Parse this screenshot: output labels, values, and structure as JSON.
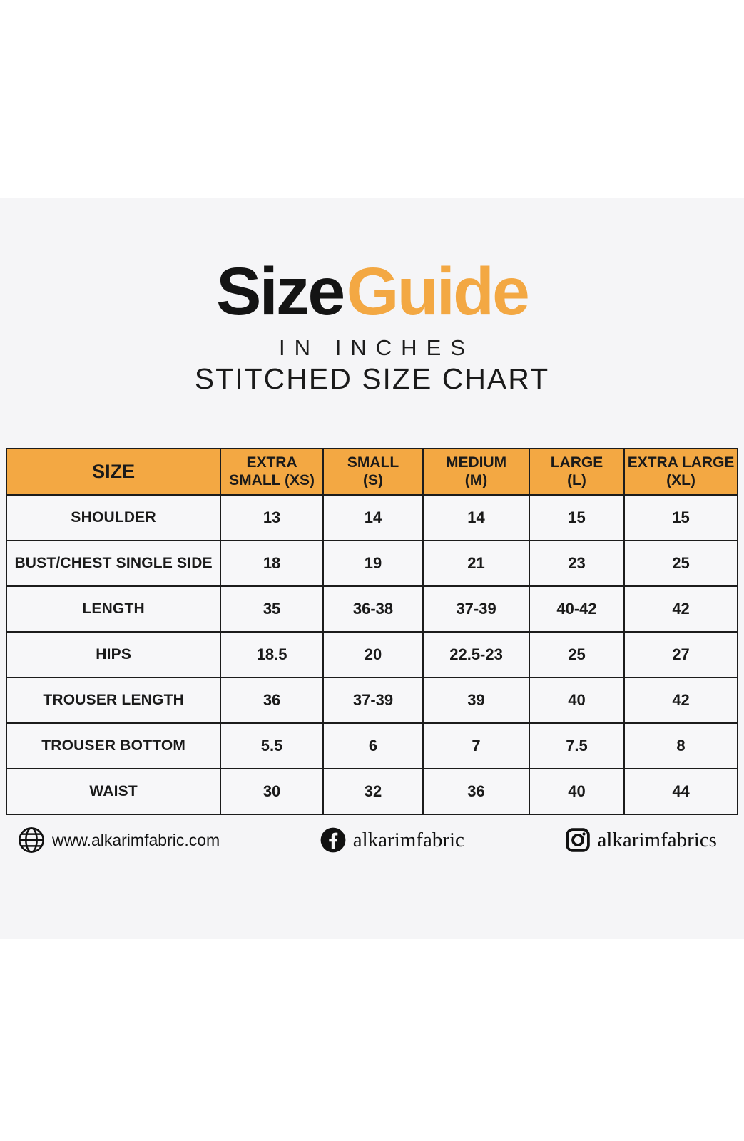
{
  "colors": {
    "accent_orange": "#f3a843",
    "content_background": "#f5f5f7",
    "cell_background": "#f7f7f9",
    "table_border": "#1c1c1c",
    "text_black": "#141414"
  },
  "header": {
    "title_word1": "Size",
    "title_word2": "Guide",
    "subtitle": "IN INCHES",
    "subtitle2": "STITCHED SIZE CHART"
  },
  "table": {
    "columns": [
      {
        "line1": "SIZE",
        "line2": ""
      },
      {
        "line1": "EXTRA",
        "line2": "SMALL (XS)"
      },
      {
        "line1": "SMALL",
        "line2": "(S)"
      },
      {
        "line1": "MEDIUM",
        "line2": "(M)"
      },
      {
        "line1": "LARGE",
        "line2": "(L)"
      },
      {
        "line1": "EXTRA LARGE",
        "line2": "(XL)"
      }
    ],
    "rows": [
      {
        "label": "SHOULDER",
        "values": [
          "13",
          "14",
          "14",
          "15",
          "15"
        ]
      },
      {
        "label": "BUST/CHEST SINGLE SIDE",
        "values": [
          "18",
          "19",
          "21",
          "23",
          "25"
        ]
      },
      {
        "label": "LENGTH",
        "values": [
          "35",
          "36-38",
          "37-39",
          "40-42",
          "42"
        ]
      },
      {
        "label": "HIPS",
        "values": [
          "18.5",
          "20",
          "22.5-23",
          "25",
          "27"
        ]
      },
      {
        "label": "TROUSER LENGTH",
        "values": [
          "36",
          "37-39",
          "39",
          "40",
          "42"
        ]
      },
      {
        "label": "TROUSER BOTTOM",
        "values": [
          "5.5",
          "6",
          "7",
          "7.5",
          "8"
        ]
      },
      {
        "label": "WAIST",
        "values": [
          "30",
          "32",
          "36",
          "40",
          "44"
        ]
      }
    ]
  },
  "footer": {
    "website": {
      "icon": "globe-icon",
      "text": "www.alkarimfabric.com"
    },
    "facebook": {
      "icon": "facebook-icon",
      "text": "alkarimfabric"
    },
    "instagram": {
      "icon": "instagram-icon",
      "text": "alkarimfabrics"
    }
  },
  "chart_data": {
    "type": "table",
    "title": "Size Guide",
    "subtitle": "IN INCHES",
    "subtitle2": "STITCHED SIZE CHART",
    "columns": [
      "SIZE",
      "EXTRA SMALL (XS)",
      "SMALL (S)",
      "MEDIUM (M)",
      "LARGE (L)",
      "EXTRA LARGE (XL)"
    ],
    "rows": [
      [
        "SHOULDER",
        "13",
        "14",
        "14",
        "15",
        "15"
      ],
      [
        "BUST/CHEST SINGLE SIDE",
        "18",
        "19",
        "21",
        "23",
        "25"
      ],
      [
        "LENGTH",
        "35",
        "36-38",
        "37-39",
        "40-42",
        "42"
      ],
      [
        "HIPS",
        "18.5",
        "20",
        "22.5-23",
        "25",
        "27"
      ],
      [
        "TROUSER LENGTH",
        "36",
        "37-39",
        "39",
        "40",
        "42"
      ],
      [
        "TROUSER BOTTOM",
        "5.5",
        "6",
        "7",
        "7.5",
        "8"
      ],
      [
        "WAIST",
        "30",
        "32",
        "36",
        "40",
        "44"
      ]
    ],
    "header_fill": "#f3a843",
    "grid": true,
    "legend_position": "none"
  }
}
